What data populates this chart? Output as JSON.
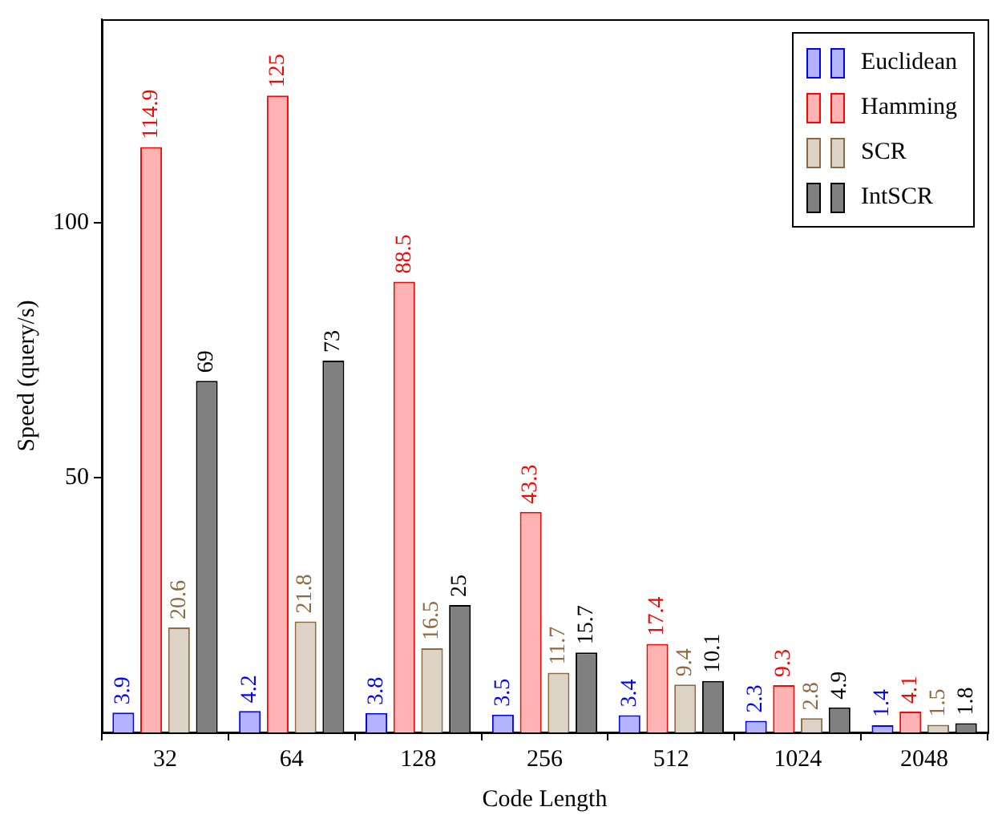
{
  "chart_data": {
    "type": "bar",
    "xlabel": "Code Length",
    "ylabel": "Speed (query/s)",
    "categories": [
      "32",
      "64",
      "128",
      "256",
      "512",
      "1024",
      "2048"
    ],
    "series": [
      {
        "name": "Euclidean",
        "color": "#b3b3ff",
        "values": [
          3.9,
          4.2,
          3.8,
          3.5,
          3.4,
          2.3,
          1.4
        ]
      },
      {
        "name": "Hamming",
        "color": "#ffb3b3",
        "values": [
          114.9,
          125,
          88.5,
          43.3,
          17.4,
          9.3,
          4.1
        ]
      },
      {
        "name": "SCR",
        "color": "#ddd2c6",
        "values": [
          20.6,
          21.8,
          16.5,
          11.7,
          9.4,
          2.8,
          1.5
        ]
      },
      {
        "name": "IntSCR",
        "color": "#808080",
        "values": [
          69,
          73,
          25,
          15.7,
          10.1,
          4.9,
          1.8
        ]
      }
    ],
    "ylim": [
      0,
      140
    ],
    "yticks": [
      50,
      100
    ],
    "grid": false,
    "legend": "top right",
    "data_labels": true
  }
}
